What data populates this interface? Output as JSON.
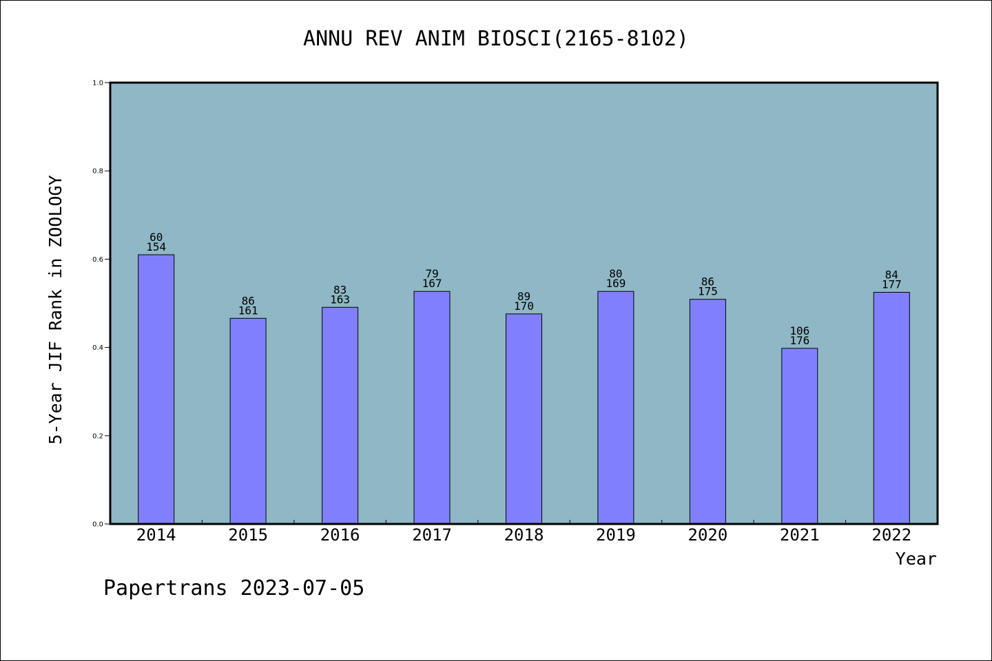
{
  "chart_data": {
    "type": "bar",
    "title": "ANNU REV ANIM BIOSCI(2165-8102)",
    "xlabel": "Year",
    "ylabel": "5-Year JIF Rank in ZOOLOGY",
    "ylim": [
      0,
      1.0
    ],
    "yticks": [
      "0.0",
      "0.2",
      "0.4",
      "0.6",
      "0.8",
      "1.0"
    ],
    "categories": [
      "2014",
      "2015",
      "2016",
      "2017",
      "2018",
      "2019",
      "2020",
      "2021",
      "2022"
    ],
    "values": [
      0.61,
      0.466,
      0.491,
      0.527,
      0.476,
      0.527,
      0.509,
      0.398,
      0.525
    ],
    "rank_labels": [
      "60",
      "86",
      "83",
      "79",
      "89",
      "80",
      "86",
      "106",
      "84"
    ],
    "total_labels": [
      "154",
      "161",
      "163",
      "167",
      "170",
      "169",
      "175",
      "176",
      "177"
    ],
    "grid": false,
    "colors": {
      "plot_bg": "#8fb7c5",
      "bar": "#8080ff",
      "bar_edge": "#000000"
    }
  },
  "footer": {
    "text": "Papertrans 2023-07-05"
  }
}
